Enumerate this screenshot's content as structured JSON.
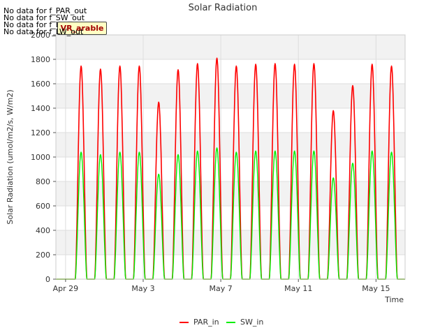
{
  "chart_data": {
    "type": "line",
    "title": "Solar Radiation",
    "xlabel": "Time",
    "ylabel": "Solar Radiation (umol/m2/s, W/m2)",
    "ylim": [
      0,
      2000
    ],
    "yticks": [
      0,
      200,
      400,
      600,
      800,
      1000,
      1200,
      1400,
      1600,
      1800,
      2000
    ],
    "xlim_days": [
      -0.5,
      17.5
    ],
    "xticks": [
      {
        "day": 0,
        "label": "Apr 29"
      },
      {
        "day": 4,
        "label": "May 3"
      },
      {
        "day": 8,
        "label": "May 7"
      },
      {
        "day": 12,
        "label": "May 11"
      },
      {
        "day": 16,
        "label": "May 15"
      }
    ],
    "no_data_messages": [
      "No data for f_PAR_out",
      "No data for f_SW_out",
      "No data for f_LW_in",
      "No data for f_LW_out"
    ],
    "badge_label": "VR_arable",
    "series": [
      {
        "name": "PAR_in",
        "color": "#ff0000",
        "daily_peaks": [
          1745,
          1720,
          1745,
          1745,
          1450,
          1715,
          1765,
          1810,
          1745,
          1760,
          1765,
          1760,
          1765,
          1380,
          1585,
          1760,
          1745
        ],
        "noon_day_offset": [
          0.8,
          1.8,
          2.8,
          3.8,
          4.8,
          5.8,
          6.8,
          7.8,
          8.8,
          9.8,
          10.8,
          11.8,
          12.8,
          13.8,
          14.8,
          15.8,
          16.8
        ]
      },
      {
        "name": "SW_in",
        "color": "#00ee00",
        "daily_peaks": [
          1040,
          1020,
          1040,
          1040,
          860,
          1020,
          1050,
          1075,
          1040,
          1050,
          1050,
          1050,
          1050,
          830,
          950,
          1050,
          1040
        ],
        "noon_day_offset": [
          0.8,
          1.8,
          2.8,
          3.8,
          4.8,
          5.8,
          6.8,
          7.8,
          8.8,
          9.8,
          10.8,
          11.8,
          12.8,
          13.8,
          14.8,
          15.8,
          16.8
        ]
      }
    ]
  }
}
